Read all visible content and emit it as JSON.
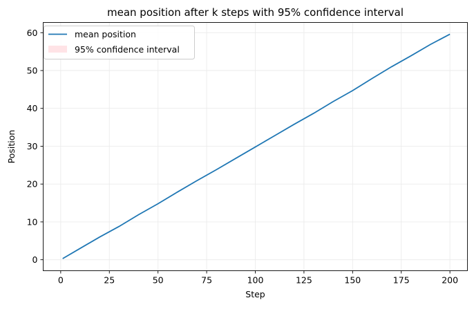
{
  "chart_data": {
    "type": "line",
    "title": "mean position after k steps with 95% confidence interval",
    "xlabel": "Step",
    "ylabel": "Position",
    "xlim": [
      -9,
      209
    ],
    "ylim": [
      -2.9,
      62.7
    ],
    "xticks": [
      0,
      25,
      50,
      75,
      100,
      125,
      150,
      175,
      200
    ],
    "yticks": [
      0,
      10,
      20,
      30,
      40,
      50,
      60
    ],
    "grid": true,
    "legend_position": "top-left",
    "series": [
      {
        "name": "mean position",
        "color": "#1f77b4",
        "x": [
          1,
          10,
          20,
          30,
          40,
          50,
          60,
          70,
          80,
          90,
          100,
          110,
          120,
          130,
          140,
          150,
          160,
          170,
          180,
          190,
          200
        ],
        "y": [
          0.3,
          3.0,
          6.0,
          8.8,
          11.9,
          14.8,
          17.9,
          20.9,
          23.8,
          26.8,
          29.8,
          32.8,
          35.8,
          38.7,
          41.8,
          44.7,
          47.9,
          51.0,
          53.9,
          56.9,
          59.6
        ]
      }
    ],
    "band": {
      "name": "95% confidence interval",
      "color": "#ffe3e6",
      "lower": [
        0.2,
        2.9,
        5.9,
        8.7,
        11.8,
        14.7,
        17.8,
        20.8,
        23.7,
        26.7,
        29.7,
        32.7,
        35.7,
        38.6,
        41.7,
        44.6,
        47.8,
        50.9,
        53.8,
        56.8,
        59.5
      ],
      "upper": [
        0.4,
        3.1,
        6.1,
        8.9,
        12.0,
        14.9,
        18.0,
        21.0,
        23.9,
        26.9,
        29.9,
        32.9,
        35.9,
        38.8,
        41.9,
        44.8,
        48.0,
        51.1,
        54.0,
        57.0,
        59.7
      ]
    }
  }
}
